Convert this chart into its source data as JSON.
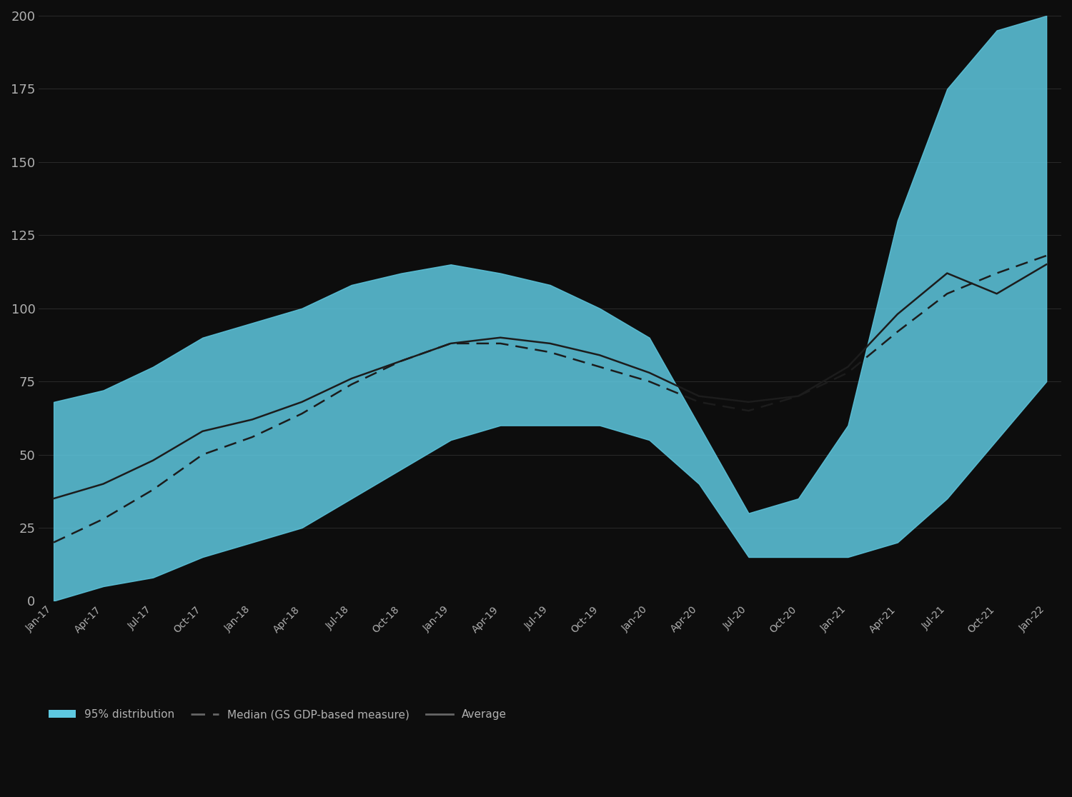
{
  "background_color": "#0d0d0d",
  "plot_bg_color": "#0d0d0d",
  "text_color": "#b0b0b0",
  "grid_color": "#2a2a2a",
  "fill_color": "#5ec8e0",
  "fill_alpha": 0.85,
  "line_color_solid": "#222222",
  "line_color_dashed": "#333333",
  "x_labels": [
    "Jan-17",
    "Apr-17",
    "Jul-17",
    "Oct-17",
    "Jan-18",
    "Apr-18",
    "Jul-18",
    "Oct-18",
    "Jan-19",
    "Apr-19",
    "Jul-19",
    "Oct-19",
    "Jan-20",
    "Apr-20",
    "Jul-20",
    "Oct-20",
    "Jan-21",
    "Apr-21",
    "Jul-21",
    "Oct-21",
    "Jan-22"
  ],
  "x_values": [
    0,
    1,
    2,
    3,
    4,
    5,
    6,
    7,
    8,
    9,
    10,
    11,
    12,
    13,
    14,
    15,
    16,
    17,
    18,
    19,
    20
  ],
  "upper_band": [
    68,
    72,
    80,
    90,
    95,
    100,
    108,
    112,
    115,
    112,
    108,
    100,
    90,
    60,
    30,
    35,
    60,
    130,
    175,
    195,
    200
  ],
  "lower_band": [
    0,
    5,
    8,
    15,
    20,
    25,
    35,
    45,
    55,
    60,
    60,
    60,
    55,
    40,
    15,
    15,
    15,
    20,
    35,
    55,
    75
  ],
  "solid_line": [
    35,
    40,
    48,
    58,
    62,
    68,
    76,
    82,
    88,
    90,
    88,
    84,
    78,
    70,
    68,
    70,
    80,
    98,
    112,
    105,
    115
  ],
  "dashed_line": [
    20,
    28,
    38,
    50,
    56,
    64,
    74,
    82,
    88,
    88,
    85,
    80,
    75,
    68,
    65,
    70,
    78,
    92,
    105,
    112,
    118
  ],
  "ylim": [
    0,
    200
  ],
  "yticks": [
    0,
    25,
    50,
    75,
    100,
    125,
    150,
    175,
    200
  ],
  "ylabel_fontsize": 13,
  "xlabel_fontsize": 10,
  "legend_labels": [
    "95% distribution",
    "Median (GS GDP-based measure)",
    "Average"
  ],
  "title_fontsize": 14
}
